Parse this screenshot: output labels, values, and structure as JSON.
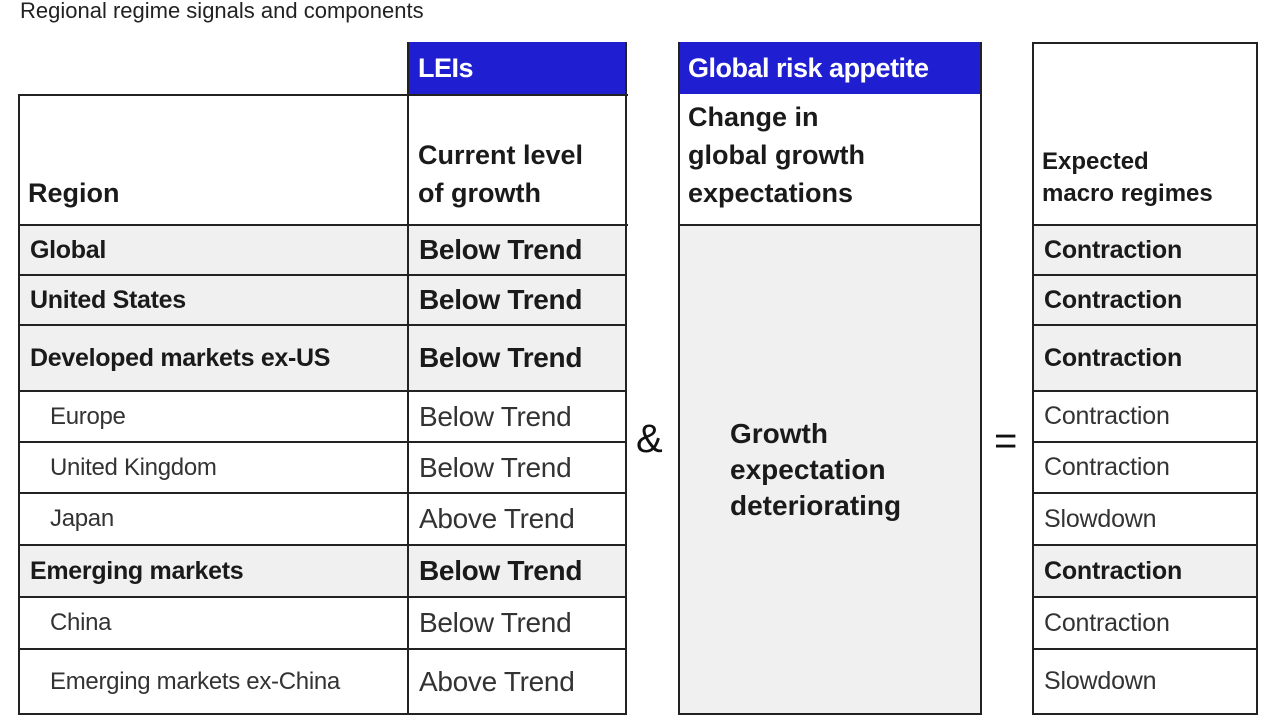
{
  "caption": "Regional regime signals and components",
  "headers": {
    "leis_group": "LEIs",
    "risk_group": "Global risk appetite",
    "region": "Region",
    "current_level_line1": "Current level",
    "current_level_line2": "of growth",
    "change_line1": "Change in",
    "change_line2": "global growth",
    "change_line3": "expectations",
    "expected_line1": "Expected",
    "expected_line2": "macro regimes"
  },
  "operators": {
    "and": "&",
    "equals": "="
  },
  "risk_value": {
    "line1": "Growth",
    "line2": "expectation",
    "line3": "deteriorating"
  },
  "rows": [
    {
      "region": "Global",
      "lei": "Below Trend",
      "regime": "Contraction"
    },
    {
      "region": "United States",
      "lei": "Below Trend",
      "regime": "Contraction"
    },
    {
      "region": "Developed markets ex-US",
      "lei": "Below Trend",
      "regime": "Contraction"
    },
    {
      "region": "Europe",
      "lei": "Below Trend",
      "regime": "Contraction"
    },
    {
      "region": "United Kingdom",
      "lei": "Below Trend",
      "regime": "Contraction"
    },
    {
      "region": "Japan",
      "lei": "Above Trend",
      "regime": "Slowdown"
    },
    {
      "region": "Emerging markets",
      "lei": "Below Trend",
      "regime": "Contraction"
    },
    {
      "region": "China",
      "lei": "Below Trend",
      "regime": "Contraction"
    },
    {
      "region": "Emerging markets ex-China",
      "lei": "Above Trend",
      "regime": "Slowdown"
    }
  ]
}
